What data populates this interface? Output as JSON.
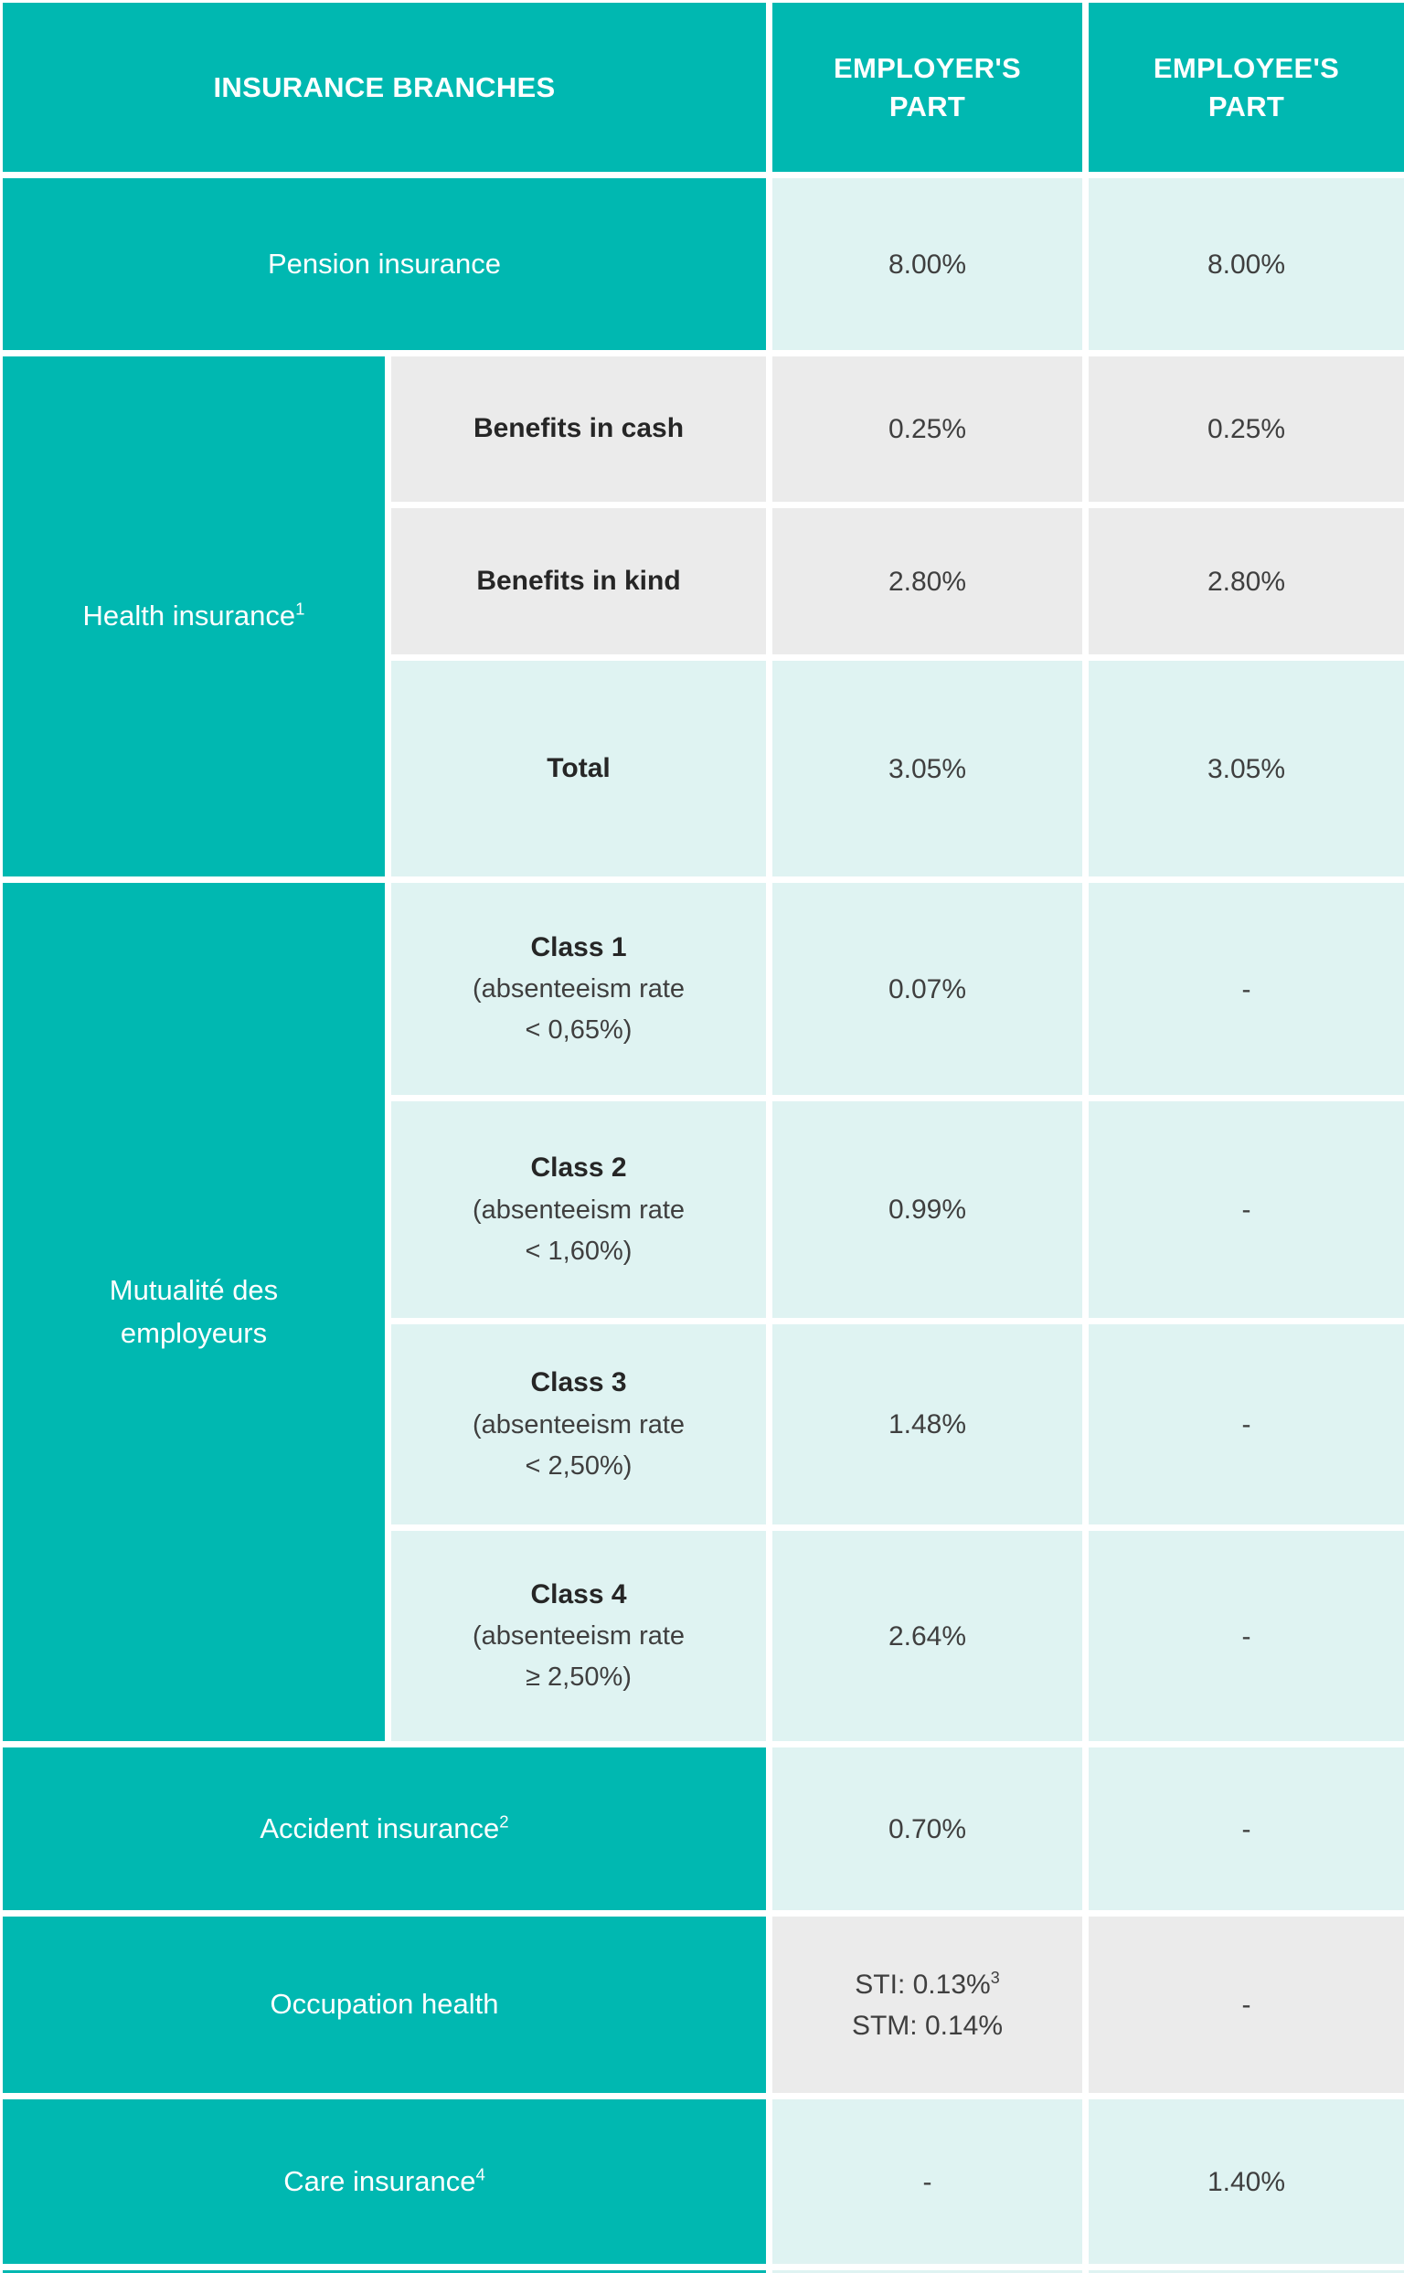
{
  "colors": {
    "teal": "#00b8b1",
    "mint": "#dff3f2",
    "gray": "#ebebeb",
    "ink": "#262626",
    "text": "#3f3f3f",
    "page": "#ffffff"
  },
  "header": {
    "branches": "INSURANCE BRANCHES",
    "employer": {
      "line1": "EMPLOYER'S",
      "line2": "PART"
    },
    "employee": {
      "line1": "EMPLOYEE'S",
      "line2": "PART"
    }
  },
  "rows": {
    "pension": {
      "label": "Pension insurance",
      "employer": "8.00%",
      "employee": "8.00%"
    },
    "health": {
      "label": "Health insurance",
      "label_sup": "1",
      "cash": {
        "label": "Benefits in cash",
        "employer": "0.25%",
        "employee": "0.25%"
      },
      "kind": {
        "label": "Benefits in kind",
        "employer": "2.80%",
        "employee": "2.80%"
      },
      "total": {
        "label": "Total",
        "employer": "3.05%",
        "employee": "3.05%"
      }
    },
    "mutualite": {
      "label_line1": "Mutualité des",
      "label_line2": "employeurs",
      "class1": {
        "title": "Class 1",
        "desc1": "(absenteeism rate",
        "desc2": "< 0,65%)",
        "employer": "0.07%",
        "employee": "-"
      },
      "class2": {
        "title": "Class 2",
        "desc1": "(absenteeism rate",
        "desc2": "< 1,60%)",
        "employer": "0.99%",
        "employee": "-"
      },
      "class3": {
        "title": "Class 3",
        "desc1": "(absenteeism rate",
        "desc2": "< 2,50%)",
        "employer": "1.48%",
        "employee": "-"
      },
      "class4": {
        "title": "Class 4",
        "desc1": "(absenteeism rate",
        "desc2": "≥ 2,50%)",
        "employer": "2.64%",
        "employee": "-"
      }
    },
    "accident": {
      "label": "Accident insurance",
      "label_sup": "2",
      "employer": "0.70%",
      "employee": "-"
    },
    "occupation": {
      "label": "Occupation health",
      "employer_sti": "STI: 0.13%",
      "employer_sti_sup": "3",
      "employer_stm": "STM: 0.14%",
      "employee": "-"
    },
    "care": {
      "label": "Care insurance",
      "label_sup": "4",
      "employer": "-",
      "employee": "1.40%"
    }
  }
}
